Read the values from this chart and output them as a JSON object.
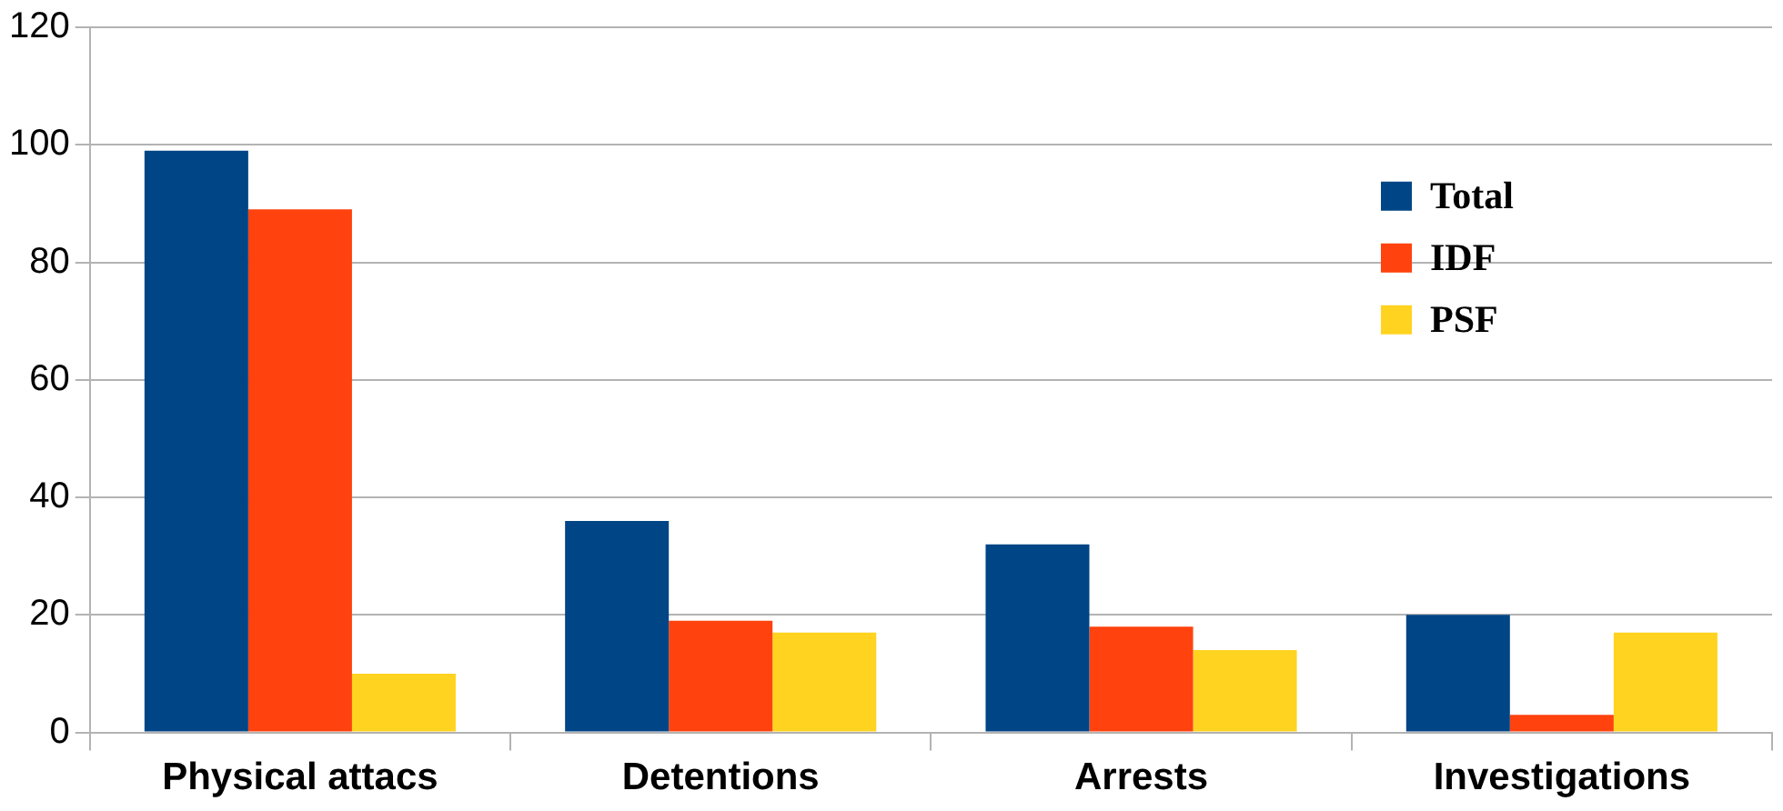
{
  "chart_data": {
    "type": "bar",
    "categories": [
      "Physical attacs",
      "Detentions",
      "Arrests",
      "Investigations"
    ],
    "series": [
      {
        "name": "Total",
        "color": "#004586",
        "values": [
          99,
          36,
          32,
          20
        ]
      },
      {
        "name": "IDF",
        "color": "#ff420e",
        "values": [
          89,
          19,
          18,
          3
        ]
      },
      {
        "name": "PSF",
        "color": "#ffd320",
        "values": [
          10,
          17,
          14,
          17
        ]
      }
    ],
    "ylim": [
      0,
      120
    ],
    "yticks": [
      0,
      20,
      40,
      60,
      80,
      100,
      120
    ],
    "grid": "y",
    "legend": "right"
  }
}
